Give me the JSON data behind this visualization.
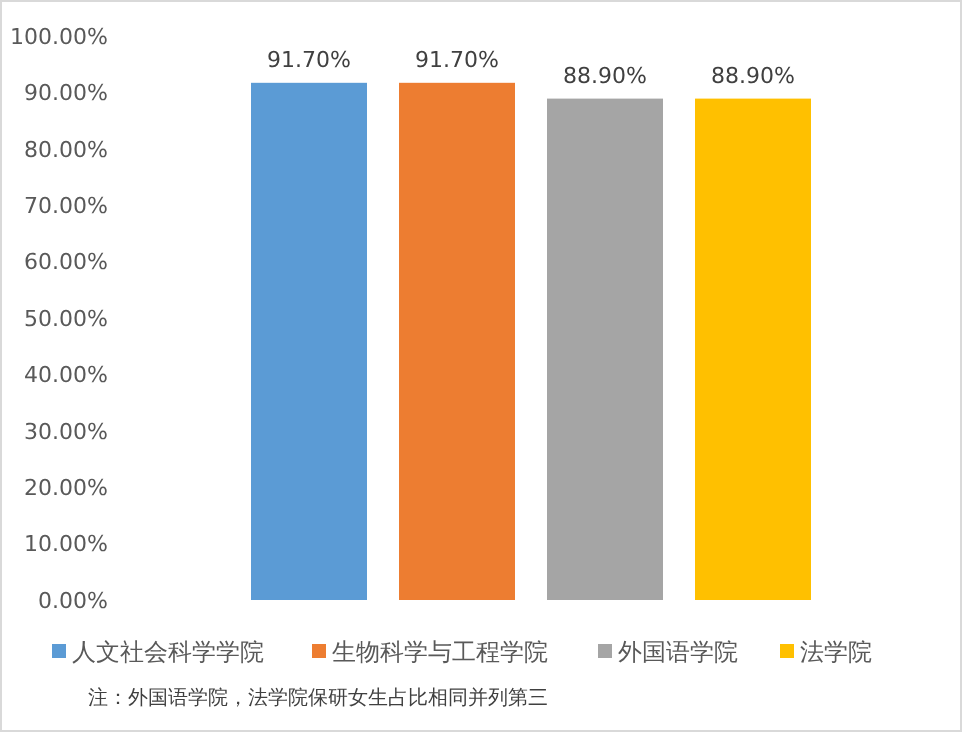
{
  "chart_data": {
    "type": "bar",
    "categories": [
      null
    ],
    "series": [
      {
        "name": "人文社会科学学院",
        "color": "#5b9bd5",
        "values": [
          91.7
        ],
        "value_labels": [
          "91.70%"
        ]
      },
      {
        "name": "生物科学与工程学院",
        "color": "#ed7d31",
        "values": [
          91.7
        ],
        "value_labels": [
          "91.70%"
        ]
      },
      {
        "name": "外国语学院",
        "color": "#a5a5a5",
        "values": [
          88.9
        ],
        "value_labels": [
          "88.90%"
        ]
      },
      {
        "name": "法学院",
        "color": "#ffc000",
        "values": [
          88.9
        ],
        "value_labels": [
          "88.90%"
        ]
      }
    ],
    "ylim": [
      0,
      100
    ],
    "yticks": [
      {
        "value": 0,
        "label": "0.00%"
      },
      {
        "value": 10,
        "label": "10.00%"
      },
      {
        "value": 20,
        "label": "20.00%"
      },
      {
        "value": 30,
        "label": "30.00%"
      },
      {
        "value": 40,
        "label": "40.00%"
      },
      {
        "value": 50,
        "label": "50.00%"
      },
      {
        "value": 60,
        "label": "60.00%"
      },
      {
        "value": 70,
        "label": "70.00%"
      },
      {
        "value": 80,
        "label": "80.00%"
      },
      {
        "value": 90,
        "label": "90.00%"
      },
      {
        "value": 100,
        "label": "100.00%"
      }
    ],
    "legend": "bottom",
    "grid": false,
    "annotations": [
      "注：外国语学院，法学院保研女生占比相同并列第三"
    ]
  }
}
